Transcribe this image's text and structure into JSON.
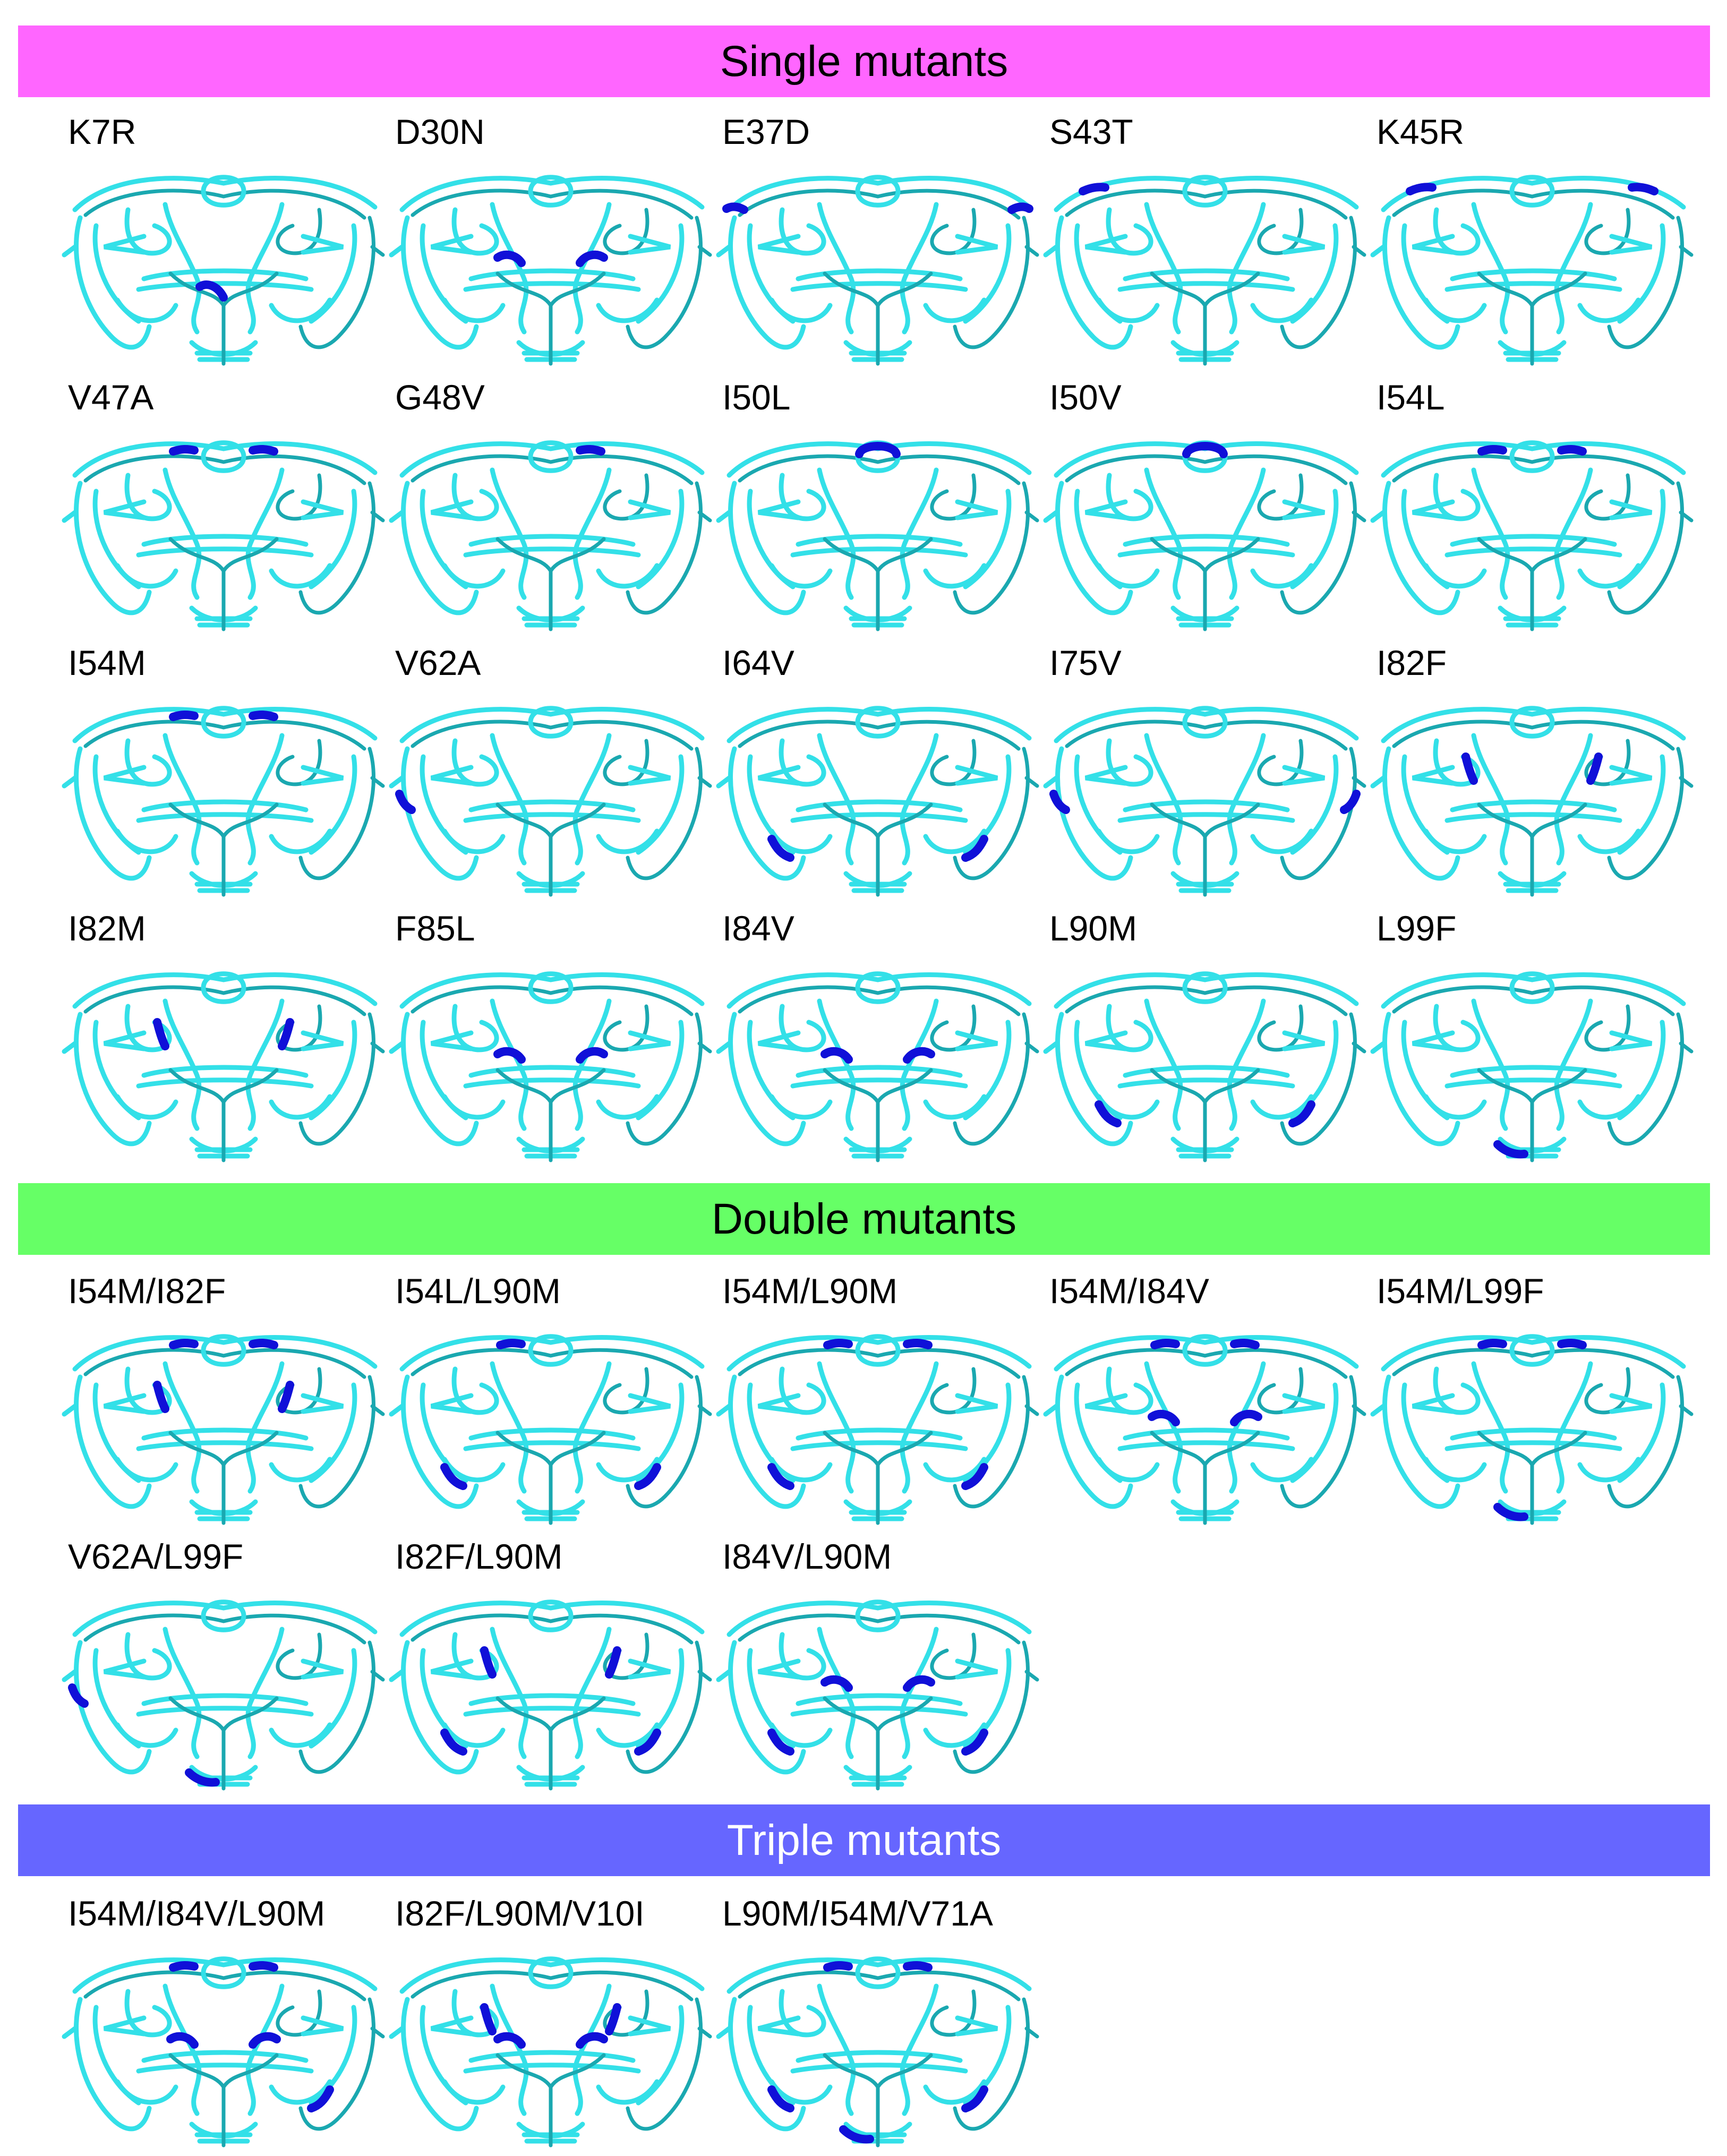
{
  "colors": {
    "single_banner": "#ff66ff",
    "double_banner": "#66ff66",
    "triple_banner": "#6666ff",
    "ribbon": "#33e0e8",
    "ribbon_dark": "#1aa8b0",
    "highlight": "#1010d8"
  },
  "sections": [
    {
      "title": "Single mutants",
      "mutants": [
        {
          "label": "K7R",
          "hl": [
            "center-low"
          ]
        },
        {
          "label": "D30N",
          "hl": [
            "mid-left",
            "mid-right"
          ]
        },
        {
          "label": "E37D",
          "hl": [
            "edge-left",
            "edge-right"
          ]
        },
        {
          "label": "S43T",
          "hl": [
            "upper-left"
          ]
        },
        {
          "label": "K45R",
          "hl": [
            "upper-left",
            "upper-right"
          ]
        },
        {
          "label": "V47A",
          "hl": [
            "flap-left",
            "flap-right"
          ]
        },
        {
          "label": "G48V",
          "hl": [
            "flap-right"
          ]
        },
        {
          "label": "I50L",
          "hl": [
            "flap-tip"
          ]
        },
        {
          "label": "I50V",
          "hl": [
            "flap-tip"
          ]
        },
        {
          "label": "I54L",
          "hl": [
            "flap-left",
            "flap-right"
          ]
        },
        {
          "label": "I54M",
          "hl": [
            "flap-left",
            "flap-right"
          ]
        },
        {
          "label": "V62A",
          "hl": [
            "side-left"
          ]
        },
        {
          "label": "I64V",
          "hl": [
            "lower-left",
            "lower-right"
          ]
        },
        {
          "label": "I75V",
          "hl": [
            "side-left",
            "side-right"
          ]
        },
        {
          "label": "I82F",
          "hl": [
            "inner-left",
            "inner-right"
          ]
        },
        {
          "label": "I82M",
          "hl": [
            "inner-left",
            "inner-right"
          ]
        },
        {
          "label": "F85L",
          "hl": [
            "mid-left",
            "mid-right"
          ]
        },
        {
          "label": "I84V",
          "hl": [
            "mid-left",
            "mid-right"
          ]
        },
        {
          "label": "L90M",
          "hl": [
            "lower-left",
            "lower-right"
          ]
        },
        {
          "label": "L99F",
          "hl": [
            "bottom"
          ]
        }
      ]
    },
    {
      "title": "Double mutants",
      "mutants": [
        {
          "label": "I54M/I82F",
          "hl": [
            "flap-left",
            "flap-right",
            "inner-left",
            "inner-right"
          ]
        },
        {
          "label": "I54L/L90M",
          "hl": [
            "flap-left",
            "lower-left",
            "lower-right"
          ]
        },
        {
          "label": "I54M/L90M",
          "hl": [
            "flap-left",
            "flap-right",
            "lower-left",
            "lower-right"
          ]
        },
        {
          "label": "I54M/I84V",
          "hl": [
            "flap-left",
            "flap-right",
            "mid-left",
            "mid-right"
          ]
        },
        {
          "label": "I54M/L99F",
          "hl": [
            "flap-left",
            "flap-right",
            "bottom"
          ]
        },
        {
          "label": "V62A/L99F",
          "hl": [
            "side-left",
            "bottom"
          ]
        },
        {
          "label": "I82F/L90M",
          "hl": [
            "inner-left",
            "inner-right",
            "lower-left",
            "lower-right"
          ]
        },
        {
          "label": "I84V/L90M",
          "hl": [
            "mid-left",
            "mid-right",
            "lower-left",
            "lower-right"
          ]
        }
      ]
    },
    {
      "title": "Triple mutants",
      "mutants": [
        {
          "label": "I54M/I84V/L90M",
          "hl": [
            "flap-left",
            "flap-right",
            "mid-left",
            "mid-right",
            "lower-right"
          ]
        },
        {
          "label": "I82F/L90M/V10I",
          "hl": [
            "inner-left",
            "inner-right",
            "mid-left",
            "mid-right"
          ]
        },
        {
          "label": "L90M/I54M/V71A",
          "hl": [
            "flap-left",
            "flap-right",
            "lower-left",
            "lower-right",
            "bottom"
          ]
        }
      ]
    }
  ]
}
